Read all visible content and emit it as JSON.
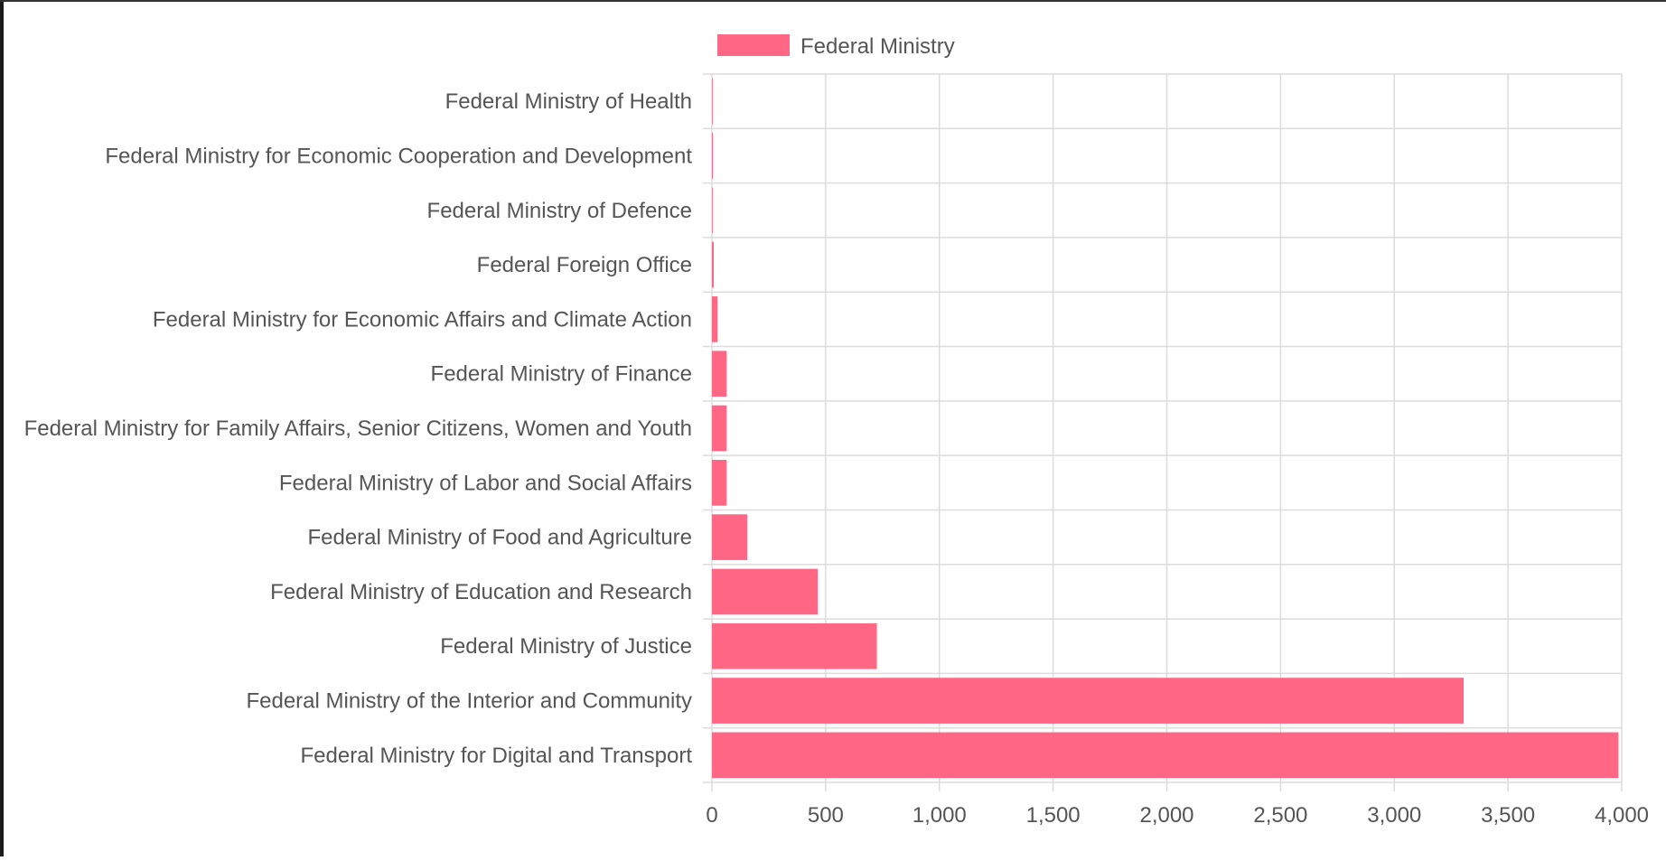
{
  "chart_data": {
    "type": "bar",
    "orientation": "horizontal",
    "title": "",
    "xlabel": "",
    "ylabel": "",
    "xlim": [
      0,
      4000
    ],
    "x_ticks": [
      "0",
      "500",
      "1,000",
      "1,500",
      "2,000",
      "2,500",
      "3,000",
      "3,500",
      "4,000"
    ],
    "x_tick_values": [
      0,
      500,
      1000,
      1500,
      2000,
      2500,
      3000,
      3500,
      4000
    ],
    "grid": true,
    "legend_position": "top",
    "categories": [
      "Federal Ministry of Health",
      "Federal Ministry for Economic Cooperation and Development",
      "Federal Ministry of Defence",
      "Federal Foreign Office",
      "Federal Ministry for Economic Affairs and Climate Action",
      "Federal Ministry of Finance",
      "Federal Ministry for Family Affairs, Senior Citizens, Women and Youth",
      "Federal Ministry of Labor and Social Affairs",
      "Federal Ministry of Food and Agriculture",
      "Federal Ministry of Education and Research",
      "Federal Ministry of Justice",
      "Federal Ministry of the Interior and Community",
      "Federal Ministry for Digital and Transport"
    ],
    "series": [
      {
        "name": "Federal Ministry",
        "color": "#ff6784",
        "values": [
          1,
          4,
          2,
          8,
          25,
          65,
          65,
          65,
          155,
          465,
          725,
          3305,
          3985
        ]
      }
    ]
  }
}
